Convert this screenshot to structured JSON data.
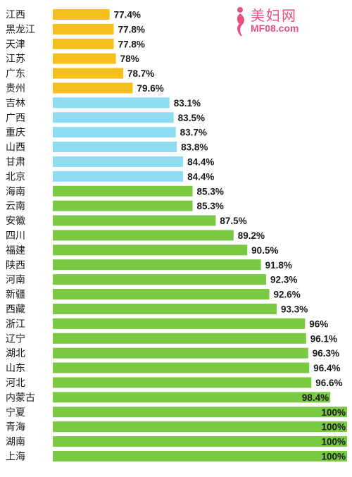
{
  "chart_data": {
    "type": "bar",
    "orientation": "horizontal",
    "categories": [
      "江西",
      "黑龙江",
      "天津",
      "江苏",
      "广东",
      "贵州",
      "吉林",
      "广西",
      "重庆",
      "山西",
      "甘肃",
      "北京",
      "海南",
      "云南",
      "安徽",
      "四川",
      "福建",
      "陕西",
      "河南",
      "新疆",
      "西藏",
      "浙江",
      "辽宁",
      "湖北",
      "山东",
      "河北",
      "内蒙古",
      "宁夏",
      "青海",
      "湖南",
      "上海"
    ],
    "values": [
      77.4,
      77.8,
      77.8,
      78,
      78.7,
      79.6,
      83.1,
      83.5,
      83.7,
      83.8,
      84.4,
      84.4,
      85.3,
      85.3,
      87.5,
      89.2,
      90.5,
      91.8,
      92.3,
      92.6,
      93.3,
      96,
      96.1,
      96.3,
      96.4,
      96.6,
      98.4,
      100,
      100,
      100,
      100
    ],
    "value_labels": [
      "77.4%",
      "77.8%",
      "77.8%",
      "78%",
      "78.7%",
      "79.6%",
      "83.1%",
      "83.5%",
      "83.7%",
      "83.8%",
      "84.4%",
      "84.4%",
      "85.3%",
      "85.3%",
      "87.5%",
      "89.2%",
      "90.5%",
      "91.8%",
      "92.3%",
      "92.6%",
      "93.3%",
      "96%",
      "96.1%",
      "96.3%",
      "96.4%",
      "96.6%",
      "98.4%",
      "100%",
      "100%",
      "100%",
      "100%"
    ],
    "color_groups": {
      "low": {
        "color": "#f7bf1e",
        "max_index": 5
      },
      "mid": {
        "color": "#8ddcf2",
        "max_index": 11
      },
      "high": {
        "color": "#79c943"
      }
    },
    "xlim": [
      72,
      100
    ],
    "grid": false,
    "legend": "none"
  },
  "watermark": {
    "title": "美妇网",
    "url": "MF08.com",
    "color": "#e8507d"
  }
}
